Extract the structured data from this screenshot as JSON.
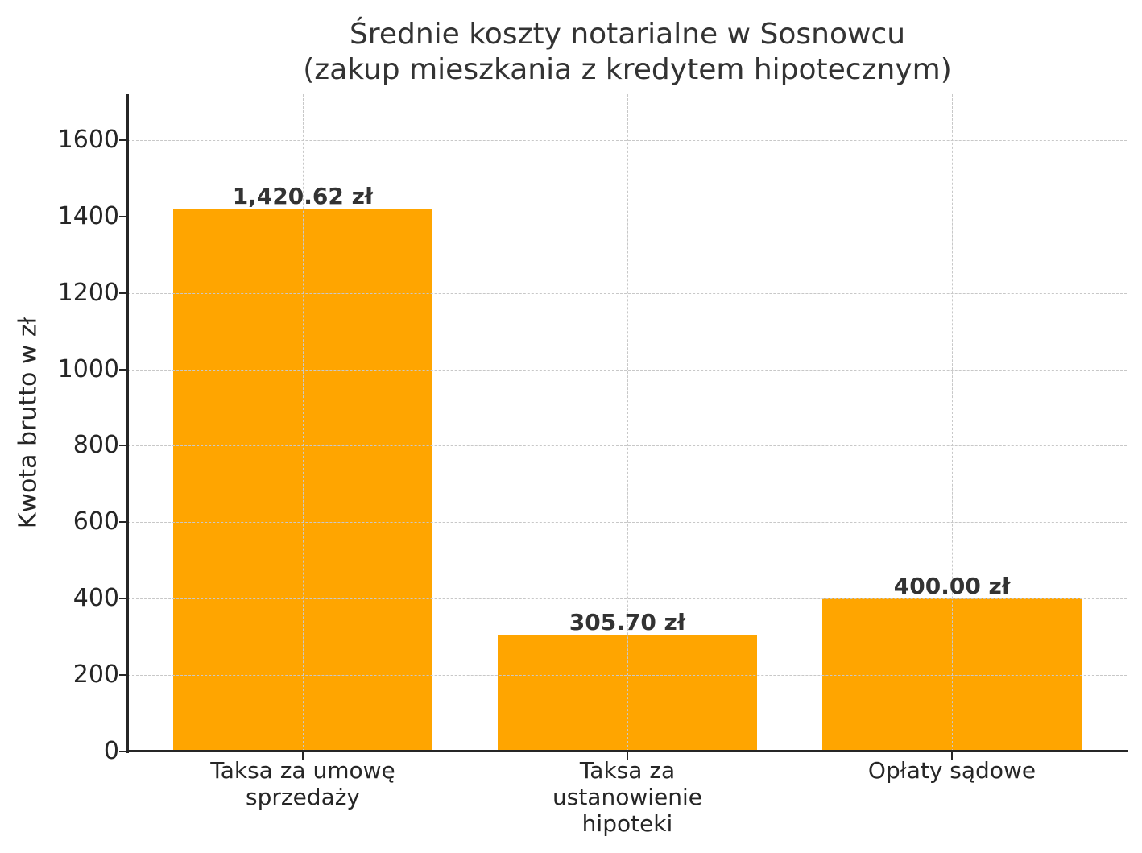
{
  "chart_data": {
    "type": "bar",
    "title": "Średnie koszty notarialne w Sosnowcu",
    "subtitle": "(zakup mieszkania z kredytem hipotecznym)",
    "xlabel": "",
    "ylabel": "Kwota brutto w zł",
    "categories": [
      "Taksa za umowę sprzedaży",
      "Taksa za ustanowienie hipoteki",
      "Opłaty sądowe"
    ],
    "category_lines": [
      [
        "Taksa za umowę",
        "sprzedaży"
      ],
      [
        "Taksa za",
        "ustanowienie",
        "hipoteki"
      ],
      [
        "Opłaty sądowe"
      ]
    ],
    "values": [
      1420.62,
      305.7,
      400.0
    ],
    "value_labels": [
      "1,420.62 zł",
      "305.70 zł",
      "400.00 zł"
    ],
    "ylim": [
      0,
      1720
    ],
    "yticks": [
      0,
      200,
      400,
      600,
      800,
      1000,
      1200,
      1400,
      1600
    ],
    "grid": true,
    "legend": null,
    "bar_color": "#ffa500"
  }
}
